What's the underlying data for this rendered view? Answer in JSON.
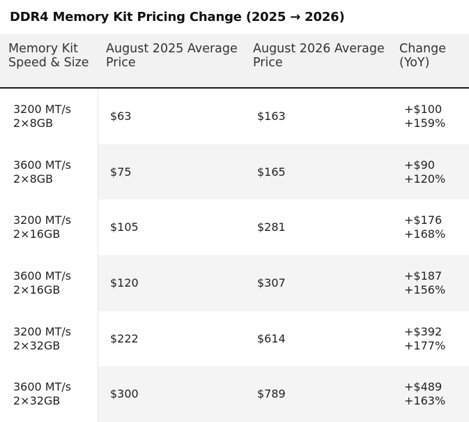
{
  "title": "DDR4 Memory Kit Pricing Change (2025 → 2026)",
  "table": {
    "headers": [
      [
        "Memory Kit",
        "Speed & Size"
      ],
      [
        "August 2025 Average",
        "Price"
      ],
      [
        "August 2026 Average",
        "Price"
      ],
      [
        "Change",
        "(YoY)"
      ]
    ],
    "rows": [
      {
        "kit": [
          "3200 MT/s",
          "2×8GB"
        ],
        "aug2025": "$63",
        "aug2026": "$163",
        "change": [
          "+$100",
          "+159%"
        ]
      },
      {
        "kit": [
          "3600 MT/s",
          "2×8GB"
        ],
        "aug2025": "$75",
        "aug2026": "$165",
        "change": [
          "+$90",
          "+120%"
        ]
      },
      {
        "kit": [
          "3200 MT/s",
          "2×16GB"
        ],
        "aug2025": "$105",
        "aug2026": "$281",
        "change": [
          "+$176",
          "+168%"
        ]
      },
      {
        "kit": [
          "3600 MT/s",
          "2×16GB"
        ],
        "aug2025": "$120",
        "aug2026": "$307",
        "change": [
          "+$187",
          "+156%"
        ]
      },
      {
        "kit": [
          "3200 MT/s",
          "2×32GB"
        ],
        "aug2025": "$222",
        "aug2026": "$614",
        "change": [
          "+$392",
          "+177%"
        ]
      },
      {
        "kit": [
          "3600 MT/s",
          "2×32GB"
        ],
        "aug2025": "$300",
        "aug2026": "$789",
        "change": [
          "+$489",
          "+163%"
        ]
      }
    ]
  }
}
